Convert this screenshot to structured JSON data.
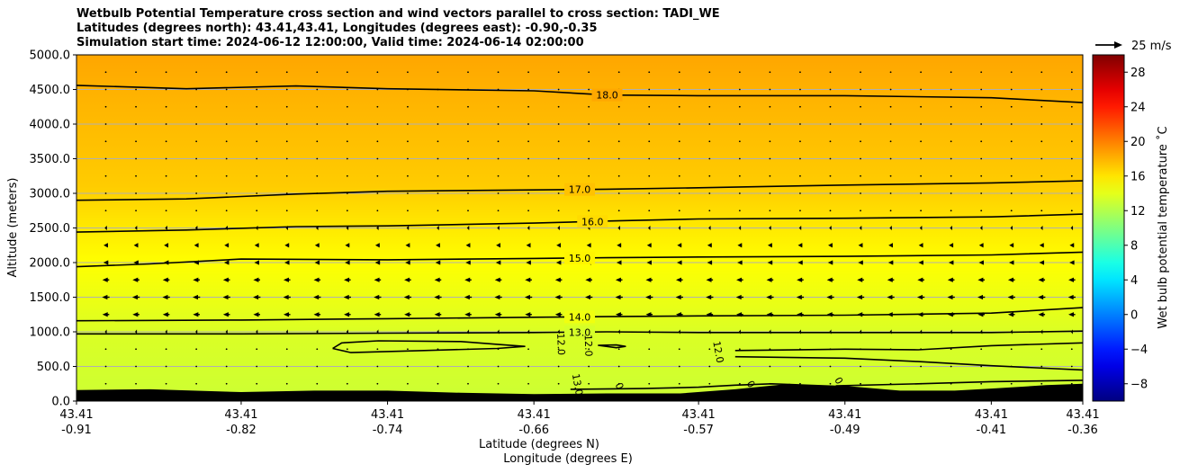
{
  "chart_data": {
    "type": "heatmap",
    "title_lines": [
      "Wetbulb Potential Temperature cross section and wind vectors parallel to cross section: TADI_WE",
      "Latitudes (degrees north): 43.41,43.41, Longitudes (degrees east): -0.90,-0.35",
      "Simulation start time: 2024-06-12 12:00:00, Valid time: 2024-06-14 02:00:00"
    ],
    "ylabel": "Altitude (meters)",
    "xlabel_lat": "Latitude (degrees N)",
    "xlabel_lon": "Longitude (degrees E)",
    "ylim": [
      0,
      5000
    ],
    "y_ticks": [
      0,
      500,
      1000,
      1500,
      2000,
      2500,
      3000,
      3500,
      4000,
      4500,
      5000
    ],
    "y_tick_labels": [
      "0.0",
      "500.0",
      "1000.0",
      "1500.0",
      "2000.0",
      "2500.0",
      "3000.0",
      "3500.0",
      "4000.0",
      "4500.0",
      "5000.0"
    ],
    "xlim": [
      -0.91,
      -0.36
    ],
    "x_ticks": [
      {
        "lat": "43.41",
        "lon": "-0.91"
      },
      {
        "lat": "43.41",
        "lon": "-0.82"
      },
      {
        "lat": "43.41",
        "lon": "-0.74"
      },
      {
        "lat": "43.41",
        "lon": "-0.66"
      },
      {
        "lat": "43.41",
        "lon": "-0.57"
      },
      {
        "lat": "43.41",
        "lon": "-0.49"
      },
      {
        "lat": "43.41",
        "lon": "-0.41"
      },
      {
        "lat": "43.41",
        "lon": "-0.36"
      }
    ],
    "grid": "horizontal",
    "colorbar": {
      "label": "Wet bulb potential temperature ˚C",
      "range": [
        -10,
        30
      ],
      "ticks": [
        -8,
        -4,
        0,
        4,
        8,
        12,
        16,
        20,
        24,
        28
      ],
      "tick_labels": [
        "−8",
        "−4",
        "0",
        "4",
        "8",
        "12",
        "16",
        "20",
        "24",
        "28"
      ],
      "colormap": "jet"
    },
    "quiver_key": {
      "label": "25 m/s",
      "speed": 25
    },
    "background_field": [
      {
        "altitude": 0,
        "value": 13.0
      },
      {
        "altitude": 1000,
        "value": 13.6
      },
      {
        "altitude": 2000,
        "value": 15.0
      },
      {
        "altitude": 2600,
        "value": 16.0
      },
      {
        "altitude": 3100,
        "value": 17.0
      },
      {
        "altitude": 4400,
        "value": 18.0
      },
      {
        "altitude": 5000,
        "value": 18.5
      }
    ],
    "contours": [
      {
        "level": 18.0,
        "label": "18.0",
        "x": [
          -0.91,
          -0.85,
          -0.79,
          -0.74,
          -0.66,
          -0.62,
          -0.57,
          -0.49,
          -0.41,
          -0.36
        ],
        "y": [
          4560,
          4510,
          4550,
          4510,
          4480,
          4420,
          4410,
          4410,
          4380,
          4310
        ]
      },
      {
        "level": 17.0,
        "label": "17.0",
        "x": [
          -0.91,
          -0.85,
          -0.79,
          -0.74,
          -0.66,
          -0.62,
          -0.57,
          -0.49,
          -0.41,
          -0.36
        ],
        "y": [
          2900,
          2920,
          2990,
          3030,
          3050,
          3060,
          3080,
          3120,
          3150,
          3180
        ]
      },
      {
        "level": 16.0,
        "label": "16.0",
        "x": [
          -0.91,
          -0.85,
          -0.79,
          -0.74,
          -0.66,
          -0.62,
          -0.57,
          -0.49,
          -0.41,
          -0.36
        ],
        "y": [
          2440,
          2470,
          2520,
          2530,
          2570,
          2600,
          2630,
          2640,
          2660,
          2700
        ]
      },
      {
        "level": 15.0,
        "label": "15.0",
        "x": [
          -0.91,
          -0.87,
          -0.82,
          -0.74,
          -0.66,
          -0.62,
          -0.57,
          -0.49,
          -0.41,
          -0.36
        ],
        "y": [
          1940,
          1980,
          2050,
          2040,
          2060,
          2070,
          2080,
          2090,
          2110,
          2150
        ]
      },
      {
        "level": 14.0,
        "label": "14.0",
        "x": [
          -0.91,
          -0.82,
          -0.74,
          -0.66,
          -0.62,
          -0.57,
          -0.49,
          -0.41,
          -0.36
        ],
        "y": [
          1160,
          1170,
          1190,
          1210,
          1220,
          1230,
          1240,
          1270,
          1350
        ]
      },
      {
        "level": 13.0,
        "label": "13.0",
        "x": [
          -0.91,
          -0.82,
          -0.74,
          -0.66,
          -0.62,
          -0.57,
          -0.49,
          -0.41,
          -0.36
        ],
        "y": [
          970,
          970,
          980,
          990,
          1000,
          990,
          990,
          990,
          1010
        ]
      },
      {
        "level": 12.0,
        "label": "",
        "x": [
          -0.77,
          -0.765,
          -0.745,
          -0.7,
          -0.68,
          -0.665,
          -0.68,
          -0.72,
          -0.76,
          -0.77
        ],
        "y": [
          760,
          840,
          870,
          860,
          820,
          790,
          760,
          730,
          700,
          760
        ]
      },
      {
        "level": 12.0,
        "label": "",
        "x": [
          -0.625,
          -0.615,
          -0.61,
          -0.615,
          -0.625
        ],
        "y": [
          805,
          810,
          790,
          770,
          805
        ]
      },
      {
        "level": 12.0,
        "label": "",
        "x": [
          -0.55,
          -0.49,
          -0.45,
          -0.41,
          -0.36
        ],
        "y": [
          730,
          750,
          740,
          800,
          840
        ]
      },
      {
        "level": 12.0,
        "label": "",
        "x": [
          -0.55,
          -0.49,
          -0.45,
          -0.41,
          -0.36
        ],
        "y": [
          640,
          620,
          570,
          510,
          450
        ]
      },
      {
        "level": 13.0,
        "label": "",
        "x": [
          -0.64,
          -0.6,
          -0.57,
          -0.55,
          -0.53,
          -0.52
        ],
        "y": [
          170,
          180,
          200,
          230,
          250,
          240
        ]
      },
      {
        "level": 13.0,
        "label": "",
        "x": [
          -0.495,
          -0.45,
          -0.41,
          -0.36
        ],
        "y": [
          220,
          250,
          280,
          300
        ]
      }
    ],
    "contour_labels": [
      {
        "text": "12.0",
        "x": -0.647,
        "y": 820,
        "angle": 88
      },
      {
        "text": "12.0",
        "x": -0.632,
        "y": 800,
        "angle": 88
      },
      {
        "text": "12.0",
        "x": -0.561,
        "y": 700,
        "angle": 80
      },
      {
        "text": "13.0",
        "x": -0.638,
        "y": 230,
        "angle": 80
      },
      {
        "text": "0",
        "x": -0.615,
        "y": 200,
        "angle": 70
      },
      {
        "text": "0",
        "x": -0.543,
        "y": 220,
        "angle": 60
      },
      {
        "text": "0",
        "x": -0.495,
        "y": 270,
        "angle": 60
      }
    ],
    "terrain": {
      "x": [
        -0.91,
        -0.87,
        -0.82,
        -0.78,
        -0.74,
        -0.7,
        -0.66,
        -0.62,
        -0.58,
        -0.55,
        -0.52,
        -0.49,
        -0.46,
        -0.43,
        -0.41,
        -0.38,
        -0.36
      ],
      "y": [
        160,
        170,
        130,
        150,
        150,
        120,
        100,
        110,
        110,
        170,
        250,
        220,
        150,
        150,
        180,
        230,
        250
      ]
    },
    "wind_u_by_level": [
      {
        "altitude": 0,
        "u": 0.3
      },
      {
        "altitude": 500,
        "u": 0.3
      },
      {
        "altitude": 1000,
        "u": -1.5
      },
      {
        "altitude": 1250,
        "u": -5.5
      },
      {
        "altitude": 1500,
        "u": -6.0
      },
      {
        "altitude": 1750,
        "u": -5.5
      },
      {
        "altitude": 2000,
        "u": -4.0
      },
      {
        "altitude": 2250,
        "u": -3.5
      },
      {
        "altitude": 2500,
        "u": -1.8
      },
      {
        "altitude": 3000,
        "u": -0.6
      },
      {
        "altitude": 3500,
        "u": -0.3
      },
      {
        "altitude": 5000,
        "u": 0.2
      }
    ]
  }
}
